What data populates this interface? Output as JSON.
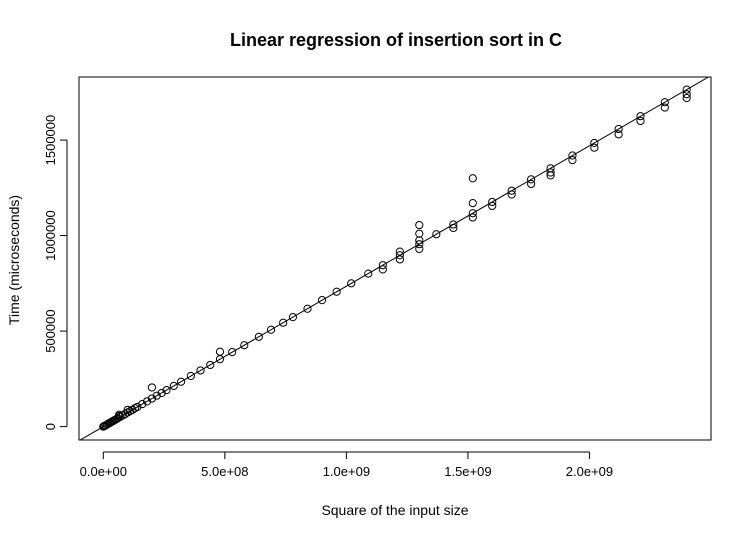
{
  "chart_data": {
    "type": "scatter",
    "title": "Linear regression of insertion sort in C",
    "xlabel": "Square of the input size",
    "ylabel": "Time (microseconds)",
    "xlim": [
      -100000000,
      2500000000
    ],
    "ylim": [
      -70000,
      1830000
    ],
    "x_ticks": [
      0,
      500000000,
      1000000000,
      1500000000,
      2000000000
    ],
    "x_tick_labels": [
      "0.0e+00",
      "5.0e+08",
      "1.0e+09",
      "1.5e+09",
      "2.0e+09"
    ],
    "y_ticks": [
      0,
      500000,
      1000000,
      1500000
    ],
    "y_tick_labels": [
      "0",
      "500000",
      "1000000",
      "1500000"
    ],
    "grid": false,
    "regression_line": {
      "intercept": 0,
      "slope": 0.000735
    },
    "points": [
      [
        0,
        0
      ],
      [
        2000000,
        1000
      ],
      [
        5000000,
        4000
      ],
      [
        10000000,
        7000
      ],
      [
        15000000,
        11000
      ],
      [
        20000000,
        15000
      ],
      [
        25000000,
        18000
      ],
      [
        30000000,
        22000
      ],
      [
        35000000,
        26000
      ],
      [
        40000000,
        29000
      ],
      [
        45000000,
        33000
      ],
      [
        50000000,
        37000
      ],
      [
        55000000,
        40000
      ],
      [
        60000000,
        44000
      ],
      [
        65000000,
        55000
      ],
      [
        65000000,
        62000
      ],
      [
        70000000,
        51000
      ],
      [
        80000000,
        59000
      ],
      [
        90000000,
        66000
      ],
      [
        100000000,
        74000
      ],
      [
        100000000,
        88000
      ],
      [
        110000000,
        81000
      ],
      [
        120000000,
        88000
      ],
      [
        130000000,
        96000
      ],
      [
        140000000,
        103000
      ],
      [
        160000000,
        118000
      ],
      [
        180000000,
        132000
      ],
      [
        200000000,
        147000
      ],
      [
        200000000,
        205000
      ],
      [
        220000000,
        162000
      ],
      [
        240000000,
        176000
      ],
      [
        260000000,
        191000
      ],
      [
        290000000,
        213000
      ],
      [
        320000000,
        235000
      ],
      [
        360000000,
        265000
      ],
      [
        400000000,
        294000
      ],
      [
        440000000,
        323000
      ],
      [
        480000000,
        353000
      ],
      [
        480000000,
        392000
      ],
      [
        530000000,
        390000
      ],
      [
        580000000,
        426000
      ],
      [
        640000000,
        470000
      ],
      [
        690000000,
        507000
      ],
      [
        740000000,
        544000
      ],
      [
        780000000,
        573000
      ],
      [
        840000000,
        617000
      ],
      [
        900000000,
        662000
      ],
      [
        960000000,
        706000
      ],
      [
        1020000000,
        750000
      ],
      [
        1090000000,
        801000
      ],
      [
        1150000000,
        845000
      ],
      [
        1150000000,
        823000
      ],
      [
        1220000000,
        897000
      ],
      [
        1220000000,
        875000
      ],
      [
        1220000000,
        916000
      ],
      [
        1300000000,
        955000
      ],
      [
        1300000000,
        930000
      ],
      [
        1300000000,
        975000
      ],
      [
        1300000000,
        1010000
      ],
      [
        1300000000,
        1055000
      ],
      [
        1370000000,
        1007000
      ],
      [
        1440000000,
        1058000
      ],
      [
        1440000000,
        1040000
      ],
      [
        1520000000,
        1117000
      ],
      [
        1520000000,
        1095000
      ],
      [
        1520000000,
        1170000
      ],
      [
        1520000000,
        1300000
      ],
      [
        1600000000,
        1176000
      ],
      [
        1600000000,
        1155000
      ],
      [
        1680000000,
        1235000
      ],
      [
        1680000000,
        1215000
      ],
      [
        1760000000,
        1294000
      ],
      [
        1760000000,
        1270000
      ],
      [
        1840000000,
        1352000
      ],
      [
        1840000000,
        1330000
      ],
      [
        1840000000,
        1315000
      ],
      [
        1930000000,
        1419000
      ],
      [
        1930000000,
        1395000
      ],
      [
        2020000000,
        1485000
      ],
      [
        2020000000,
        1460000
      ],
      [
        2120000000,
        1558000
      ],
      [
        2120000000,
        1530000
      ],
      [
        2210000000,
        1625000
      ],
      [
        2210000000,
        1600000
      ],
      [
        2310000000,
        1698000
      ],
      [
        2310000000,
        1670000
      ],
      [
        2400000000,
        1764000
      ],
      [
        2400000000,
        1740000
      ],
      [
        2400000000,
        1720000
      ]
    ]
  }
}
